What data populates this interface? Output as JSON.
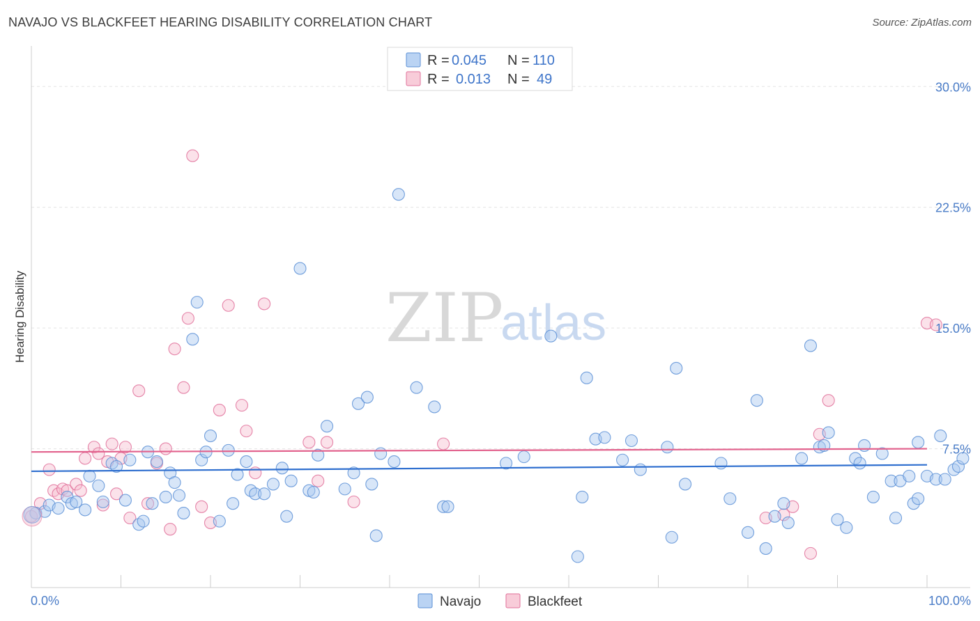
{
  "header": {
    "title": "NAVAJO VS BLACKFEET HEARING DISABILITY CORRELATION CHART",
    "source": "Source: ZipAtlas.com"
  },
  "watermark": {
    "zip": "ZIP",
    "atlas": "atlas"
  },
  "colors": {
    "navajo": "#5b8fd6",
    "navajo_fill": "#a9c8f0",
    "blackfeet": "#e0709a",
    "blackfeet_fill": "#f6bfd0",
    "navajo_line": "#2f6fcf",
    "blackfeet_line": "#e2628d"
  },
  "legend_top": {
    "r_label": "R =",
    "n_label": "N =",
    "navajo_r": "0.045",
    "navajo_n": "110",
    "blackfeet_r": "0.013",
    "blackfeet_n": "49"
  },
  "chart_data": {
    "type": "scatter",
    "title": "NAVAJO VS BLACKFEET HEARING DISABILITY CORRELATION CHART",
    "xlabel": "",
    "ylabel": "Hearing Disability",
    "xlim": [
      0,
      100
    ],
    "ylim": [
      0,
      32
    ],
    "x_tick_labels": [
      "0.0%",
      "100.0%"
    ],
    "y_ticks": [
      7.5,
      15.0,
      22.5,
      30.0
    ],
    "y_tick_labels": [
      "7.5%",
      "15.0%",
      "22.5%",
      "30.0%"
    ],
    "grid": true,
    "legend": [
      "Navajo",
      "Blackfeet"
    ],
    "series": [
      {
        "name": "Navajo",
        "trend": [
          [
            0,
            6.1
          ],
          [
            100,
            6.5
          ]
        ],
        "points": [
          [
            0.5,
            3.5
          ],
          [
            1.5,
            3.6
          ],
          [
            2,
            4.0
          ],
          [
            3,
            3.8
          ],
          [
            4,
            4.5
          ],
          [
            4.5,
            4.1
          ],
          [
            5,
            4.2
          ],
          [
            6,
            3.7
          ],
          [
            6.5,
            5.8
          ],
          [
            7.5,
            5.2
          ],
          [
            8,
            4.2
          ],
          [
            9,
            6.6
          ],
          [
            9.5,
            6.4
          ],
          [
            10.5,
            4.3
          ],
          [
            11,
            6.8
          ],
          [
            12,
            2.8
          ],
          [
            12.5,
            3.0
          ],
          [
            13,
            7.3
          ],
          [
            13.5,
            4.1
          ],
          [
            14,
            6.7
          ],
          [
            15,
            4.5
          ],
          [
            15.5,
            6.0
          ],
          [
            16,
            5.4
          ],
          [
            16.5,
            4.6
          ],
          [
            17,
            3.5
          ],
          [
            18,
            14.3
          ],
          [
            18.5,
            16.6
          ],
          [
            19,
            6.8
          ],
          [
            19.5,
            7.3
          ],
          [
            20,
            8.3
          ],
          [
            21,
            3.0
          ],
          [
            22,
            7.4
          ],
          [
            22.5,
            4.1
          ],
          [
            23,
            5.9
          ],
          [
            24,
            6.7
          ],
          [
            24.5,
            4.9
          ],
          [
            25,
            4.7
          ],
          [
            26,
            4.7
          ],
          [
            27,
            5.3
          ],
          [
            28,
            6.3
          ],
          [
            28.5,
            3.3
          ],
          [
            29,
            5.5
          ],
          [
            30,
            18.7
          ],
          [
            31,
            4.9
          ],
          [
            31.5,
            4.8
          ],
          [
            32,
            7.1
          ],
          [
            33,
            8.9
          ],
          [
            35,
            5.0
          ],
          [
            36,
            6.0
          ],
          [
            36.5,
            10.3
          ],
          [
            37.5,
            10.7
          ],
          [
            38,
            5.3
          ],
          [
            38.5,
            2.1
          ],
          [
            39,
            7.2
          ],
          [
            40.5,
            6.7
          ],
          [
            41,
            23.3
          ],
          [
            43,
            11.3
          ],
          [
            45,
            10.1
          ],
          [
            46,
            3.9
          ],
          [
            46.5,
            3.9
          ],
          [
            53,
            6.6
          ],
          [
            55,
            7.0
          ],
          [
            58,
            14.5
          ],
          [
            61,
            0.8
          ],
          [
            61.5,
            4.5
          ],
          [
            62,
            11.9
          ],
          [
            63,
            8.1
          ],
          [
            64,
            8.2
          ],
          [
            66,
            6.8
          ],
          [
            67,
            8.0
          ],
          [
            68,
            6.2
          ],
          [
            71,
            7.6
          ],
          [
            71.5,
            2.0
          ],
          [
            72,
            12.5
          ],
          [
            73,
            5.3
          ],
          [
            77,
            6.6
          ],
          [
            78,
            4.4
          ],
          [
            80,
            2.3
          ],
          [
            81,
            10.5
          ],
          [
            82,
            1.3
          ],
          [
            83,
            3.3
          ],
          [
            84,
            4.1
          ],
          [
            84.5,
            2.9
          ],
          [
            86,
            6.9
          ],
          [
            87,
            13.9
          ],
          [
            88,
            7.6
          ],
          [
            88.5,
            7.7
          ],
          [
            89,
            8.5
          ],
          [
            90,
            3.1
          ],
          [
            91,
            2.6
          ],
          [
            92,
            6.9
          ],
          [
            92.5,
            6.6
          ],
          [
            93,
            7.7
          ],
          [
            94,
            4.5
          ],
          [
            95,
            7.2
          ],
          [
            96,
            5.5
          ],
          [
            96.5,
            3.2
          ],
          [
            97,
            5.5
          ],
          [
            98,
            5.8
          ],
          [
            98.5,
            4.1
          ],
          [
            99,
            4.4
          ],
          [
            99,
            7.9
          ],
          [
            100,
            5.8
          ],
          [
            101,
            5.6
          ],
          [
            101.5,
            8.3
          ],
          [
            102,
            5.6
          ],
          [
            103,
            6.2
          ],
          [
            103.5,
            6.4
          ],
          [
            104,
            6.9
          ]
        ]
      },
      {
        "name": "Blackfeet",
        "trend": [
          [
            0,
            7.3
          ],
          [
            100,
            7.5
          ]
        ],
        "points": [
          [
            0,
            3.3
          ],
          [
            1,
            4.1
          ],
          [
            2,
            6.2
          ],
          [
            2.5,
            4.9
          ],
          [
            3,
            4.7
          ],
          [
            3.5,
            5.0
          ],
          [
            4,
            4.9
          ],
          [
            5,
            5.3
          ],
          [
            5.5,
            4.9
          ],
          [
            6,
            6.9
          ],
          [
            7,
            7.6
          ],
          [
            7.5,
            7.2
          ],
          [
            8,
            4.0
          ],
          [
            8.5,
            6.7
          ],
          [
            9,
            7.8
          ],
          [
            9.5,
            4.7
          ],
          [
            10,
            6.9
          ],
          [
            10.5,
            7.6
          ],
          [
            11,
            3.2
          ],
          [
            12,
            11.1
          ],
          [
            13,
            4.1
          ],
          [
            14,
            6.6
          ],
          [
            15,
            7.5
          ],
          [
            15.5,
            2.5
          ],
          [
            16,
            13.7
          ],
          [
            17,
            11.3
          ],
          [
            17.5,
            15.6
          ],
          [
            18,
            25.7
          ],
          [
            19,
            3.9
          ],
          [
            20,
            2.9
          ],
          [
            21,
            9.9
          ],
          [
            22,
            16.4
          ],
          [
            23.5,
            10.2
          ],
          [
            24,
            8.6
          ],
          [
            25,
            6.0
          ],
          [
            26,
            16.5
          ],
          [
            31,
            7.9
          ],
          [
            32,
            5.5
          ],
          [
            33,
            7.9
          ],
          [
            36,
            4.2
          ],
          [
            46,
            7.8
          ],
          [
            82,
            3.2
          ],
          [
            84,
            3.4
          ],
          [
            85,
            3.9
          ],
          [
            87,
            1.0
          ],
          [
            88,
            8.4
          ],
          [
            89,
            10.5
          ],
          [
            100,
            15.3
          ],
          [
            101,
            15.2
          ]
        ]
      }
    ]
  },
  "bottom_legend": {
    "navajo": "Navajo",
    "blackfeet": "Blackfeet"
  }
}
